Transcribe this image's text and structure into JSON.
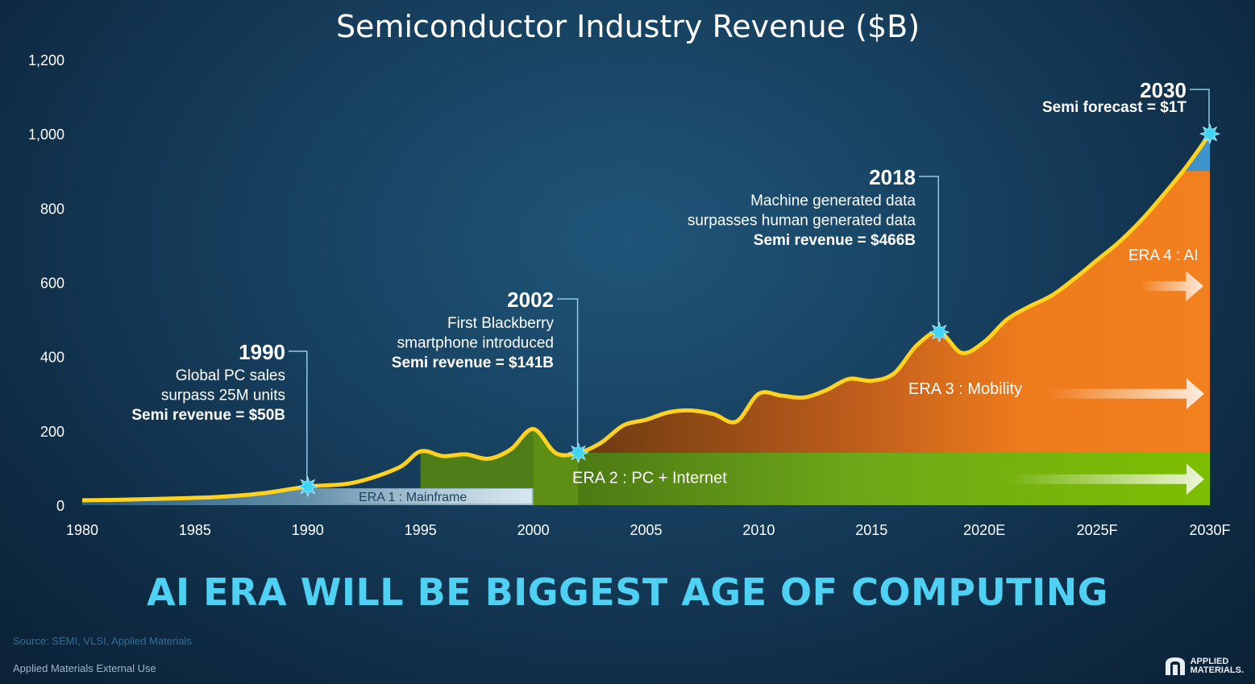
{
  "chart_data": {
    "type": "area",
    "title": "Semiconductor Industry Revenue ($B)",
    "ylim": [
      0,
      1200
    ],
    "yticks": [
      "0",
      "200",
      "400",
      "600",
      "800",
      "1,000",
      "1,200"
    ],
    "ytick_values": [
      0,
      200,
      400,
      600,
      800,
      1000,
      1200
    ],
    "xlim": [
      1980,
      2030
    ],
    "xticks": [
      "1980",
      "1985",
      "1990",
      "1995",
      "2000",
      "2005",
      "2010",
      "2015",
      "2020E",
      "2025F",
      "2030F"
    ],
    "xtick_values": [
      1980,
      1985,
      1990,
      1995,
      2000,
      2005,
      2010,
      2015,
      2020,
      2025,
      2030
    ],
    "series": [
      {
        "x": [
          1980,
          1982,
          1984,
          1986,
          1988,
          1990,
          1992,
          1994,
          1995,
          1996,
          1997,
          1998,
          1999,
          2000,
          2001,
          2002,
          2003,
          2004,
          2005,
          2006,
          2007,
          2008,
          2009,
          2010,
          2011,
          2012,
          2013,
          2014,
          2015,
          2016,
          2017,
          2018,
          2019,
          2020,
          2021,
          2022,
          2023,
          2024,
          2025,
          2026,
          2027,
          2028,
          2029,
          2030
        ],
        "values": [
          13,
          15,
          18,
          22,
          32,
          50,
          60,
          100,
          145,
          132,
          137,
          125,
          150,
          205,
          140,
          141,
          168,
          215,
          230,
          250,
          255,
          245,
          225,
          300,
          295,
          290,
          310,
          340,
          335,
          355,
          430,
          466,
          410,
          440,
          500,
          535,
          565,
          610,
          660,
          710,
          770,
          840,
          915,
          1000
        ],
        "color": "#ffd21f"
      }
    ],
    "eras": [
      {
        "label": "ERA 1 : Mainframe",
        "x_start": 1980,
        "x_end": 2000,
        "level": 50,
        "color": "#8fb3c7"
      },
      {
        "label": "ERA 2 : PC + Internet",
        "x_start": 2002,
        "x_end": 2030,
        "level": 141,
        "color": "#7ab800"
      },
      {
        "label": "ERA 3 : Mobility",
        "x_start": 2002,
        "x_end": 2030,
        "level": 466,
        "color": "#f07e1e"
      },
      {
        "label": "ERA 4 : AI",
        "x_start": 2018,
        "x_end": 2030,
        "level": 1000,
        "color": "#3a8ec6"
      }
    ],
    "annotations": [
      {
        "year_label": "1990",
        "x": 1990,
        "y": 50,
        "lines": [
          "Global PC sales",
          "surpass 25M units"
        ],
        "bold": "Semi revenue = $50B"
      },
      {
        "year_label": "2002",
        "x": 2002,
        "y": 141,
        "lines": [
          "First Blackberry",
          "smartphone introduced"
        ],
        "bold": "Semi revenue = $141B"
      },
      {
        "year_label": "2018",
        "x": 2018,
        "y": 466,
        "lines": [
          "Machine generated data",
          "surpasses human generated data"
        ],
        "bold": "Semi revenue = $466B"
      },
      {
        "year_label": "2030",
        "x": 2030,
        "y": 1000,
        "lines": [],
        "bold": "Semi forecast = $1T"
      }
    ]
  },
  "headline": "AI ERA WILL BE BIGGEST AGE OF COMPUTING",
  "source": "Source: SEMI, VLSI, Applied Materials",
  "footer": "Applied Materials External Use",
  "logo": {
    "line1": "APPLIED",
    "line2": "MATERIALS."
  }
}
